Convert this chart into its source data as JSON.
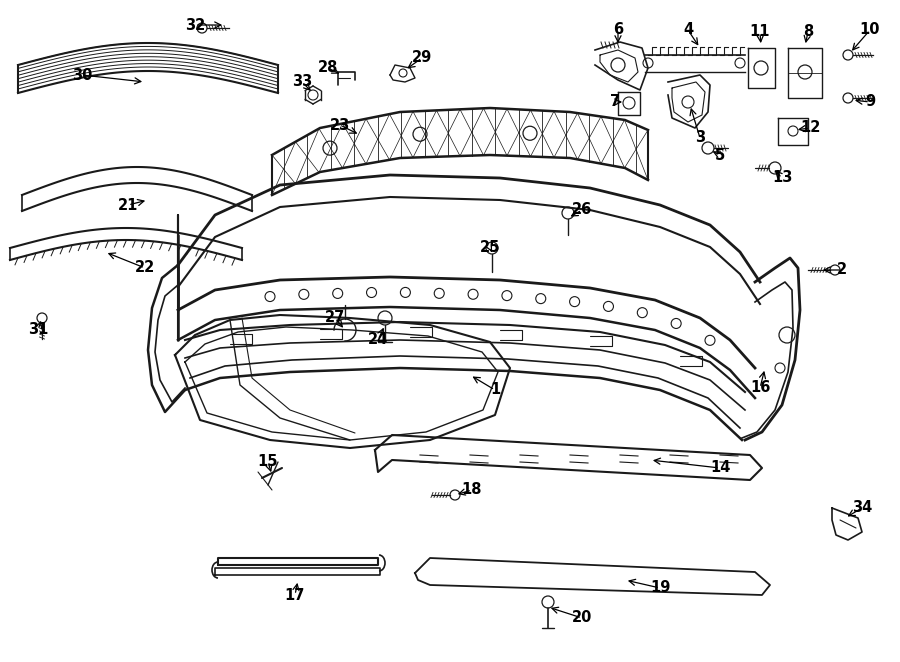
{
  "bg_color": "#ffffff",
  "line_color": "#1a1a1a",
  "fig_width": 9.0,
  "fig_height": 6.62,
  "dpi": 100,
  "fs": 10.5,
  "fw": "bold"
}
